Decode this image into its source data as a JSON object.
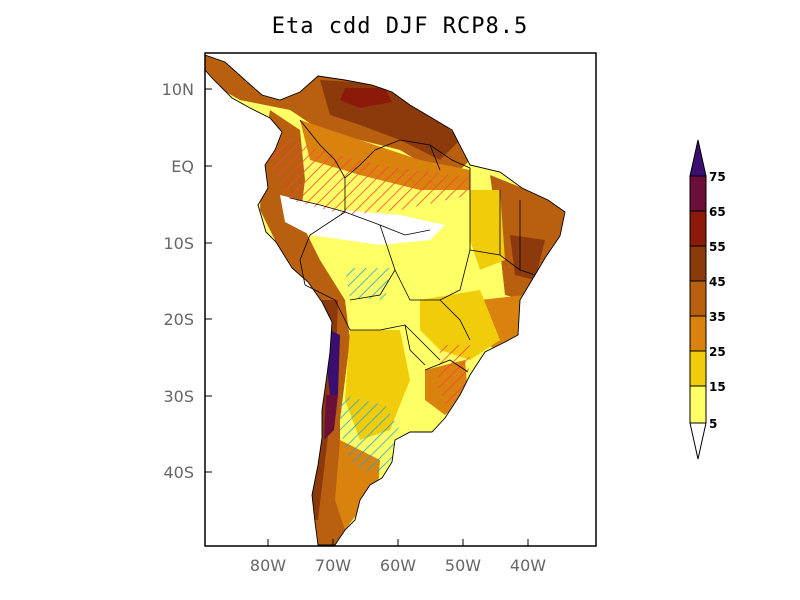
{
  "title": "Eta  cdd DJF RCP8.5",
  "axes": {
    "lat_labels": [
      "10N",
      "EQ",
      "10S",
      "20S",
      "30S",
      "40S"
    ],
    "lon_labels": [
      "80W",
      "70W",
      "60W",
      "50W",
      "40W"
    ]
  },
  "colorbar": {
    "levels": [
      "75",
      "65",
      "55",
      "45",
      "35",
      "25",
      "15",
      "5"
    ],
    "colors": [
      "#3b0f70",
      "#6b0f3a",
      "#8b1a0a",
      "#8c3a0c",
      "#b8600f",
      "#d9820e",
      "#f1cc0a",
      "#ffff66",
      "#ffffff"
    ]
  },
  "legend_colors": {
    "hatch_increase": "#ff4040",
    "hatch_decrease": "#22a6d8",
    "no_data": "#ffffff"
  }
}
